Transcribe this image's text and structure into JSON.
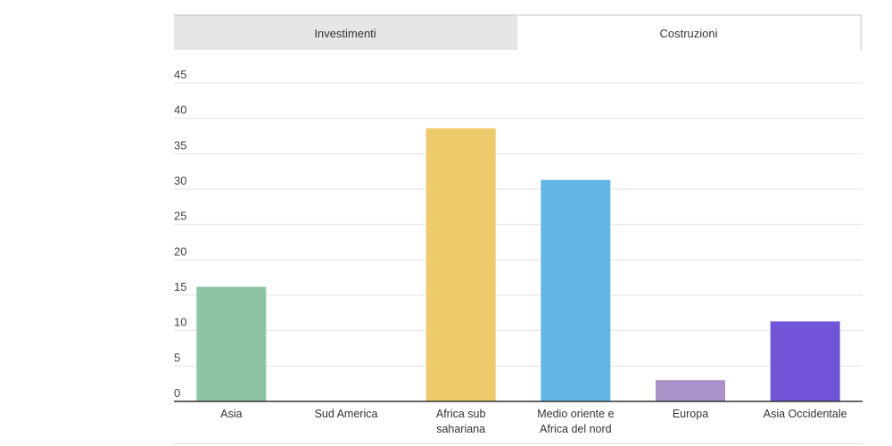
{
  "tabs": [
    {
      "label": "Investimenti",
      "active": false
    },
    {
      "label": "Costruzioni",
      "active": true
    }
  ],
  "chart_data": {
    "type": "bar",
    "title": "",
    "xlabel": "",
    "ylabel": "",
    "ylim": [
      0,
      45
    ],
    "yticks": [
      0,
      5,
      10,
      15,
      20,
      25,
      30,
      35,
      40,
      45
    ],
    "grid": true,
    "legend": "none",
    "categories": [
      [
        "Asia"
      ],
      [
        "Sud America"
      ],
      [
        "Africa sub",
        "sahariana"
      ],
      [
        "Medio oriente e",
        "Africa del nord"
      ],
      [
        "Europa"
      ],
      [
        "Asia Occidentale"
      ]
    ],
    "values": [
      16.2,
      0,
      38.6,
      31.3,
      3,
      11.3
    ],
    "colors": [
      "#8ec4a5",
      "#cccccc",
      "#edca6a",
      "#61b6e6",
      "#aa92c8",
      "#7154d8"
    ]
  }
}
